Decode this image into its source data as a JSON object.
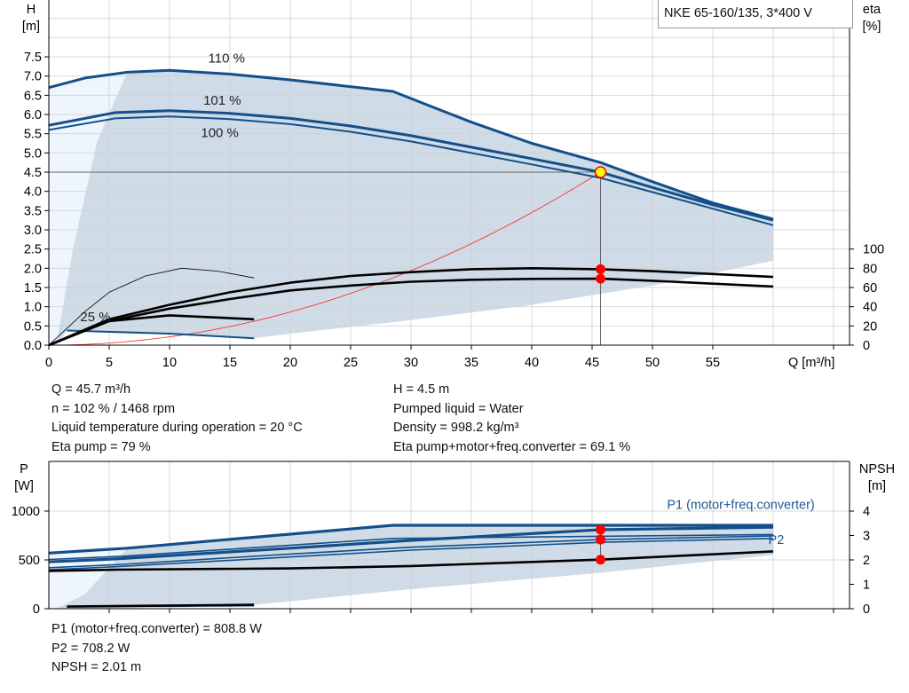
{
  "title": "NKE 65-160/135, 3*400 V",
  "colors": {
    "curve_blue": "#134f8a",
    "range_fill": "#cfdbe6",
    "range_light": "#eef5fc",
    "system": "#ff2020",
    "op_point": "#ffff00",
    "marker": "#ff0000",
    "grid": "#d0d0d0"
  },
  "info_top": {
    "left": [
      "Q = 45.7 m³/h",
      "n = 102 % / 1468 rpm",
      "Liquid temperature during operation = 20 °C",
      "Eta pump = 79 %"
    ],
    "right": [
      "H = 4.5 m",
      "Pumped liquid = Water",
      "Density = 998.2 kg/m³",
      "Eta pump+motor+freq.converter = 69.1 %"
    ]
  },
  "info_bottom": [
    "P1 (motor+freq.converter) = 808.8 W",
    "P2 = 708.2 W",
    "NPSH = 2.01 m"
  ],
  "chart_data": [
    {
      "type": "line",
      "xlabel": "Q [m³/h]",
      "ylabel": "H\n[m]",
      "ylabel_right": "eta\n[%]",
      "xlim": [
        0,
        66
      ],
      "ylim": [
        0,
        9
      ],
      "ylim_right": [
        0,
        166
      ],
      "xticks": [
        "0",
        "5",
        "10",
        "15",
        "20",
        "25",
        "30",
        "35",
        "40",
        "45",
        "50",
        "55"
      ],
      "yticks": [
        "0.0",
        "0.5",
        "1.0",
        "1.5",
        "2.0",
        "2.5",
        "3.0",
        "3.5",
        "4.0",
        "4.5",
        "5.0",
        "5.5",
        "6.0",
        "6.5",
        "7.0",
        "7.5"
      ],
      "yticks_right": [
        "0",
        "20",
        "40",
        "60",
        "80",
        "100"
      ],
      "grid": true,
      "curve_labels": [
        {
          "text": "110 %",
          "x": 13.2,
          "y": 7.35
        },
        {
          "text": "101 %",
          "x": 12.8,
          "y": 6.25
        },
        {
          "text": "100 %",
          "x": 12.6,
          "y": 6.1
        },
        {
          "text": "25 %",
          "x": 2.6,
          "y": 0.62
        }
      ],
      "operating_range": [
        [
          0.6,
          0
        ],
        [
          2,
          2.5
        ],
        [
          4,
          5.3
        ],
        [
          6.5,
          7.1
        ],
        [
          10,
          7.15
        ],
        [
          15,
          7.05
        ],
        [
          20,
          6.9
        ],
        [
          28.5,
          6.6
        ],
        [
          35,
          5.8
        ],
        [
          40,
          5.25
        ],
        [
          45.7,
          4.75
        ],
        [
          50,
          4.25
        ],
        [
          55,
          3.7
        ],
        [
          60,
          3.28
        ],
        [
          60,
          2.2
        ],
        [
          50,
          1.55
        ],
        [
          40,
          1.05
        ],
        [
          30,
          0.65
        ],
        [
          20,
          0.3
        ],
        [
          17,
          0.18
        ],
        [
          10,
          0.3
        ],
        [
          1.5,
          0.38
        ]
      ],
      "extended_range": [
        [
          0,
          0
        ],
        [
          0,
          6.7
        ],
        [
          3,
          6.95
        ],
        [
          6.5,
          7.1
        ],
        [
          4,
          5.3
        ],
        [
          2,
          2.5
        ],
        [
          0.6,
          0
        ]
      ],
      "series": [
        {
          "name": "110 %",
          "axis": "H",
          "weight": "bold",
          "points": [
            [
              0,
              6.7
            ],
            [
              3,
              6.95
            ],
            [
              6.5,
              7.1
            ],
            [
              10,
              7.15
            ],
            [
              15,
              7.05
            ],
            [
              20,
              6.9
            ],
            [
              28.5,
              6.6
            ],
            [
              35,
              5.8
            ],
            [
              40,
              5.25
            ],
            [
              45.7,
              4.75
            ],
            [
              50,
              4.25
            ],
            [
              55,
              3.7
            ],
            [
              60,
              3.28
            ]
          ]
        },
        {
          "name": "101 %",
          "axis": "H",
          "weight": "bold",
          "points": [
            [
              0,
              5.72
            ],
            [
              5.5,
              6.05
            ],
            [
              10,
              6.1
            ],
            [
              15,
              6.03
            ],
            [
              20,
              5.9
            ],
            [
              25,
              5.7
            ],
            [
              30,
              5.45
            ],
            [
              35,
              5.15
            ],
            [
              40,
              4.85
            ],
            [
              45.7,
              4.5
            ],
            [
              50,
              4.1
            ],
            [
              55,
              3.65
            ],
            [
              60,
              3.25
            ]
          ]
        },
        {
          "name": "100 %",
          "axis": "H",
          "weight": "normal",
          "points": [
            [
              0,
              5.6
            ],
            [
              5.5,
              5.9
            ],
            [
              10,
              5.95
            ],
            [
              15,
              5.88
            ],
            [
              20,
              5.75
            ],
            [
              25,
              5.55
            ],
            [
              30,
              5.3
            ],
            [
              35,
              5.0
            ],
            [
              40,
              4.7
            ],
            [
              45.7,
              4.35
            ],
            [
              50,
              3.98
            ],
            [
              55,
              3.55
            ],
            [
              60,
              3.12
            ]
          ]
        },
        {
          "name": "25 %",
          "axis": "H",
          "weight": "normal",
          "points": [
            [
              1.5,
              0.38
            ],
            [
              10,
              0.3
            ],
            [
              17,
              0.18
            ]
          ]
        },
        {
          "axis": "eta",
          "color": "black",
          "points": [
            [
              0,
              0
            ],
            [
              5,
              27
            ],
            [
              10,
              42
            ],
            [
              15,
              55
            ],
            [
              20,
              65
            ],
            [
              25,
              72
            ],
            [
              30,
              76
            ],
            [
              35,
              79
            ],
            [
              40,
              80
            ],
            [
              45.7,
              79
            ],
            [
              50,
              77
            ],
            [
              55,
              74
            ],
            [
              60,
              71
            ]
          ]
        },
        {
          "axis": "eta",
          "color": "black",
          "points": [
            [
              0,
              0
            ],
            [
              5,
              25
            ],
            [
              10,
              38
            ],
            [
              15,
              48
            ],
            [
              20,
              57
            ],
            [
              25,
              62
            ],
            [
              30,
              66
            ],
            [
              35,
              68
            ],
            [
              40,
              69
            ],
            [
              45.7,
              69.1
            ],
            [
              50,
              67
            ],
            [
              55,
              64
            ],
            [
              60,
              61
            ]
          ]
        },
        {
          "axis": "eta",
          "color": "black",
          "thin": true,
          "points": [
            [
              0,
              0
            ],
            [
              3,
              35
            ],
            [
              5,
              55
            ],
            [
              8,
              72
            ],
            [
              11,
              80
            ],
            [
              14,
              77
            ],
            [
              17,
              70
            ]
          ]
        },
        {
          "axis": "eta",
          "color": "black",
          "points": [
            [
              5,
              25
            ],
            [
              10,
              31
            ],
            [
              17,
              27
            ]
          ]
        }
      ],
      "system_curve": {
        "q": 45.7,
        "h": 4.5
      },
      "operating_point": {
        "q": 45.7,
        "h": 4.5,
        "eta_pump": 79,
        "eta_total": 69.1
      }
    },
    {
      "type": "line",
      "ylabel": "P\n[W]",
      "ylabel_right": "NPSH\n[m]",
      "xlim": [
        0,
        66
      ],
      "ylim": [
        0,
        1500
      ],
      "ylim_right": [
        0,
        6
      ],
      "yticks": [
        "0",
        "500",
        "1000"
      ],
      "yticks_right": [
        "0",
        "1",
        "2",
        "3",
        "4"
      ],
      "grid": true,
      "curve_labels": [
        {
          "text": "P1 (motor+freq.converter)",
          "x": 51.2,
          "y": 4.1,
          "axis": "NPSH"
        },
        {
          "text": "P2",
          "x": 59.6,
          "y": 2.65,
          "axis": "NPSH"
        }
      ],
      "operating_range": [
        [
          0.6,
          0
        ],
        [
          3,
          150
        ],
        [
          6.5,
          620
        ],
        [
          28.5,
          855
        ],
        [
          60,
          855
        ],
        [
          60,
          550
        ],
        [
          45,
          360
        ],
        [
          30,
          200
        ],
        [
          17,
          40
        ],
        [
          10,
          10
        ]
      ],
      "extended_range": [
        [
          0,
          0
        ],
        [
          0,
          570
        ],
        [
          6.5,
          620
        ],
        [
          3,
          150
        ],
        [
          0.6,
          0
        ]
      ],
      "series": [
        {
          "name": "P1 (motor+freq.converter)",
          "axis": "P",
          "weight": "bold",
          "points": [
            [
              0,
              570
            ],
            [
              6.5,
              620
            ],
            [
              28.5,
              855
            ],
            [
              60,
              855
            ]
          ]
        },
        {
          "axis": "P",
          "weight": "bold",
          "points": [
            [
              0,
              480
            ],
            [
              5.5,
              510
            ],
            [
              20,
              620
            ],
            [
              30,
              700
            ],
            [
              45.7,
              808.8
            ],
            [
              60,
              835
            ]
          ]
        },
        {
          "axis": "P",
          "weight": "normal",
          "points": [
            [
              0,
              505
            ],
            [
              6.5,
              540
            ],
            [
              28.5,
              720
            ],
            [
              60,
              760
            ]
          ]
        },
        {
          "name": "P2",
          "axis": "P",
          "weight": "normal",
          "points": [
            [
              0,
              420
            ],
            [
              5.5,
              450
            ],
            [
              20,
              560
            ],
            [
              30,
              630
            ],
            [
              45.7,
              708.2
            ],
            [
              60,
              745
            ]
          ]
        },
        {
          "axis": "P",
          "weight": "normal",
          "points": [
            [
              0,
              400
            ],
            [
              5.5,
              430
            ],
            [
              20,
              530
            ],
            [
              30,
              600
            ],
            [
              45.7,
              680
            ],
            [
              60,
              720
            ]
          ]
        },
        {
          "axis": "P",
          "weight": "normal",
          "points": [
            [
              1.5,
              22
            ],
            [
              17,
              30
            ]
          ]
        },
        {
          "axis": "NPSH",
          "color": "black",
          "points": [
            [
              0,
              1.55
            ],
            [
              5.5,
              1.6
            ],
            [
              20,
              1.65
            ],
            [
              30,
              1.75
            ],
            [
              45.7,
              2.01
            ],
            [
              60,
              2.35
            ]
          ]
        },
        {
          "axis": "P",
          "color": "black",
          "points": [
            [
              1.5,
              22
            ],
            [
              17,
              40
            ]
          ]
        }
      ],
      "operating_point": {
        "q": 45.7,
        "p1": 808.8,
        "p2": 708.2,
        "npsh": 2.01
      }
    }
  ]
}
